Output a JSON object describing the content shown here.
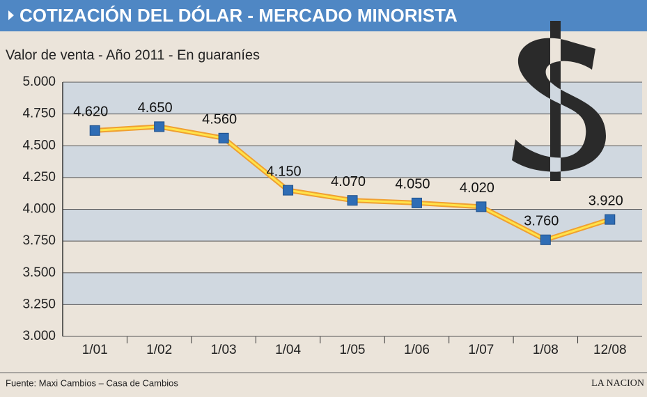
{
  "chart_data": {
    "type": "line",
    "title": "COTIZACIÓN DEL DÓLAR - MERCADO MINORISTA",
    "subtitle": "Valor de venta - Año 2011 - En guaraníes",
    "categories": [
      "1/01",
      "1/02",
      "1/03",
      "1/04",
      "1/05",
      "1/06",
      "1/07",
      "1/08",
      "12/08"
    ],
    "series": [
      {
        "name": null,
        "color": "#f0a030",
        "values": [
          4620,
          4650,
          4560,
          4150,
          4070,
          4050,
          4020,
          3760,
          3920
        ],
        "value_labels": [
          "4.620",
          "4.650",
          "4.560",
          "4.150",
          "4.070",
          "4.050",
          "4.020",
          "3.760",
          "3.920"
        ]
      }
    ],
    "ylim": [
      3000,
      5000
    ],
    "yticks": [
      {
        "value": 3000,
        "label": "3.000"
      },
      {
        "value": 3250,
        "label": "3.250"
      },
      {
        "value": 3500,
        "label": "3.500"
      },
      {
        "value": 3750,
        "label": "3.750"
      },
      {
        "value": 4000,
        "label": "4.000"
      },
      {
        "value": 4250,
        "label": "4.250"
      },
      {
        "value": 4500,
        "label": "4.500"
      },
      {
        "value": 4750,
        "label": "4.750"
      },
      {
        "value": 5000,
        "label": "5.000"
      }
    ],
    "grid": true,
    "source": "Fuente: Maxi Cambios – Casa de Cambios",
    "publisher": "LA NACION"
  }
}
